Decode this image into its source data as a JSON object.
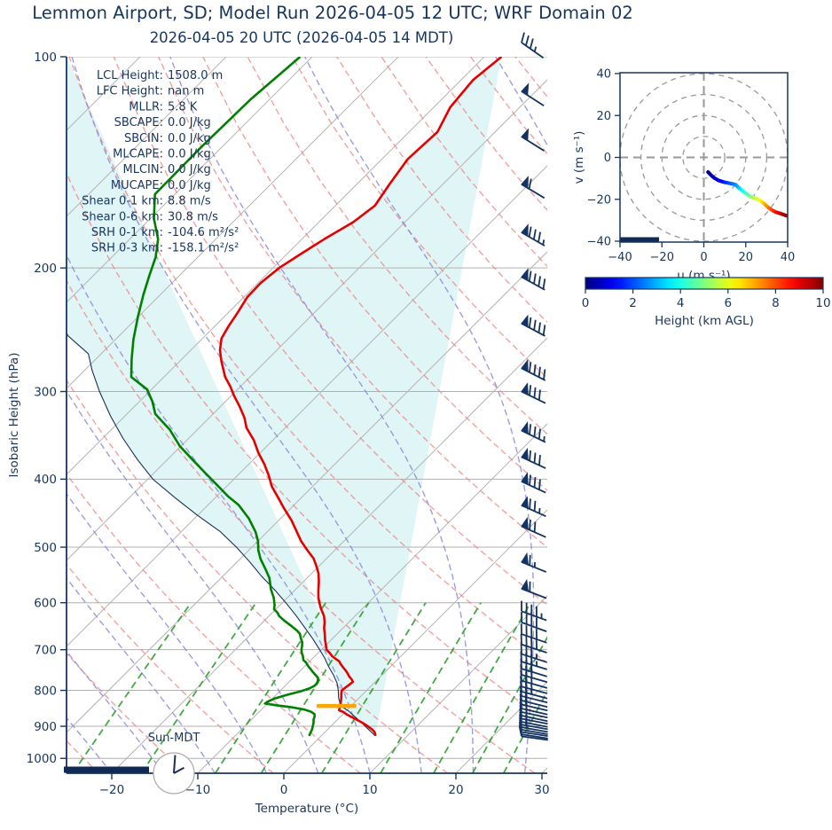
{
  "title": "Lemmon Airport, SD; Model Run 2026-04-05 12 UTC; WRF Domain 02",
  "subtitle": "2026-04-05 20 UTC  (2026-04-05 14 MDT)",
  "colors": {
    "text": "#17365d",
    "spine": "#17365d",
    "temperature_line": "#e50000",
    "dewpoint_line": "#008000",
    "parcel_line": "#1b2f55",
    "dry_adiabat": "#f08080",
    "moist_adiabat": "#8585da",
    "mixing_ratio": "#2d9e2d",
    "isotherm": "#b5b5b5",
    "grid": "#b0b0b0",
    "shade_cin": "#e0f5f6",
    "wind_barb": "#153360",
    "lcl_marker": "#ffa500",
    "night_bar": "#102a54",
    "hodo_ring": "#999999",
    "clock_face": "#aaaaaa"
  },
  "chart_data": {
    "type": "skew-t-log-p sounding",
    "skewt": {
      "xlabel": "Temperature (°C)",
      "ylabel": "Isobaric Height (hPa)",
      "x_ticks": [
        -20,
        -10,
        0,
        10,
        20,
        30
      ],
      "p_ticks": [
        100,
        200,
        300,
        400,
        500,
        600,
        700,
        800,
        900,
        1000
      ],
      "xlim_bottom": [
        -25.3,
        30.6
      ],
      "plim": [
        100,
        1050
      ],
      "sun_label": "Sun-MDT",
      "clock_shows": "14:00",
      "temperature_profile": [
        [
          100,
          -58.0
        ],
        [
          108,
          -58.6
        ],
        [
          118,
          -58.1
        ],
        [
          128,
          -56.7
        ],
        [
          140,
          -57.0
        ],
        [
          152,
          -56.2
        ],
        [
          163,
          -55.4
        ],
        [
          172,
          -56.0
        ],
        [
          182,
          -57.4
        ],
        [
          190,
          -58.3
        ],
        [
          200,
          -59.3
        ],
        [
          210,
          -59.7
        ],
        [
          220,
          -59.6
        ],
        [
          232,
          -58.9
        ],
        [
          242,
          -58.4
        ],
        [
          252,
          -57.8
        ],
        [
          262,
          -56.6
        ],
        [
          272,
          -55.1
        ],
        [
          286,
          -52.9
        ],
        [
          295,
          -51.2
        ],
        [
          304,
          -49.7
        ],
        [
          315,
          -47.8
        ],
        [
          327,
          -45.9
        ],
        [
          338,
          -44.5
        ],
        [
          352,
          -42.2
        ],
        [
          367,
          -40.2
        ],
        [
          380,
          -38.3
        ],
        [
          395,
          -36.4
        ],
        [
          410,
          -34.7
        ],
        [
          425,
          -32.7
        ],
        [
          440,
          -30.8
        ],
        [
          458,
          -28.5
        ],
        [
          476,
          -26.5
        ],
        [
          490,
          -25.0
        ],
        [
          505,
          -23.2
        ],
        [
          519,
          -21.5
        ],
        [
          532,
          -20.3
        ],
        [
          545,
          -19.2
        ],
        [
          560,
          -18.2
        ],
        [
          577,
          -17.2
        ],
        [
          590,
          -16.4
        ],
        [
          600,
          -15.7
        ],
        [
          612,
          -14.8
        ],
        [
          627,
          -13.6
        ],
        [
          640,
          -12.8
        ],
        [
          652,
          -12.2
        ],
        [
          662,
          -11.6
        ],
        [
          669,
          -11.2
        ],
        [
          678,
          -10.7
        ],
        [
          688,
          -10.1
        ],
        [
          700,
          -9.4
        ],
        [
          708,
          -8.6
        ],
        [
          715,
          -8.0
        ],
        [
          722,
          -7.2
        ],
        [
          727,
          -6.6
        ],
        [
          735,
          -6.0
        ],
        [
          742,
          -5.4
        ],
        [
          750,
          -4.7
        ],
        [
          758,
          -4.1
        ],
        [
          765,
          -3.6
        ],
        [
          772,
          -3.0
        ],
        [
          778,
          -2.6
        ],
        [
          785,
          -2.7
        ],
        [
          793,
          -2.8
        ],
        [
          800,
          -2.9
        ],
        [
          808,
          -2.6
        ],
        [
          815,
          -2.3
        ],
        [
          822,
          -2.0
        ],
        [
          830,
          -1.7
        ],
        [
          836,
          -1.5
        ],
        [
          842,
          -1.3
        ],
        [
          848,
          -1.1
        ],
        [
          854,
          -0.9
        ],
        [
          858,
          -0.3
        ],
        [
          864,
          0.3
        ],
        [
          872,
          1.2
        ],
        [
          881,
          2.3
        ],
        [
          890,
          3.3
        ],
        [
          900,
          4.3
        ],
        [
          911,
          5.3
        ],
        [
          918,
          5.8
        ],
        [
          924,
          6.1
        ],
        [
          929,
          6.3
        ]
      ],
      "dewpoint_profile": [
        [
          100,
          -81.4
        ],
        [
          115,
          -82.2
        ],
        [
          135,
          -82.4
        ],
        [
          157,
          -82.3
        ],
        [
          170,
          -79.6
        ],
        [
          182,
          -76.7
        ],
        [
          193,
          -74.9
        ],
        [
          205,
          -73.5
        ],
        [
          218,
          -72.0
        ],
        [
          235,
          -70.0
        ],
        [
          253,
          -67.9
        ],
        [
          270,
          -65.8
        ],
        [
          286,
          -63.8
        ],
        [
          298,
          -60.5
        ],
        [
          310,
          -58.5
        ],
        [
          323,
          -56.7
        ],
        [
          340,
          -53.2
        ],
        [
          359,
          -50.1
        ],
        [
          375,
          -47.1
        ],
        [
          391,
          -44.2
        ],
        [
          407,
          -41.4
        ],
        [
          423,
          -38.7
        ],
        [
          435,
          -36.5
        ],
        [
          455,
          -33.7
        ],
        [
          476,
          -31.3
        ],
        [
          490,
          -30.0
        ],
        [
          505,
          -28.9
        ],
        [
          520,
          -27.6
        ],
        [
          536,
          -26.0
        ],
        [
          553,
          -24.4
        ],
        [
          574,
          -22.9
        ],
        [
          590,
          -21.6
        ],
        [
          605,
          -20.6
        ],
        [
          613,
          -20.2
        ],
        [
          620,
          -19.4
        ],
        [
          627,
          -18.8
        ],
        [
          637,
          -17.6
        ],
        [
          648,
          -16.2
        ],
        [
          658,
          -15.0
        ],
        [
          665,
          -14.3
        ],
        [
          673,
          -13.8
        ],
        [
          683,
          -13.1
        ],
        [
          691,
          -12.7
        ],
        [
          698,
          -12.4
        ],
        [
          706,
          -12.0
        ],
        [
          715,
          -11.4
        ],
        [
          724,
          -10.9
        ],
        [
          730,
          -10.3
        ],
        [
          738,
          -9.7
        ],
        [
          746,
          -9.0
        ],
        [
          752,
          -8.5
        ],
        [
          760,
          -7.8
        ],
        [
          768,
          -7.1
        ],
        [
          775,
          -6.8
        ],
        [
          782,
          -6.6
        ],
        [
          788,
          -6.6
        ],
        [
          795,
          -6.9
        ],
        [
          803,
          -7.6
        ],
        [
          812,
          -8.8
        ],
        [
          822,
          -9.8
        ],
        [
          830,
          -10.2
        ],
        [
          835,
          -10.3
        ],
        [
          840,
          -8.8
        ],
        [
          845,
          -6.9
        ],
        [
          852,
          -5.0
        ],
        [
          858,
          -4.0
        ],
        [
          865,
          -3.3
        ],
        [
          872,
          -3.0
        ],
        [
          880,
          -2.8
        ],
        [
          890,
          -2.4
        ],
        [
          900,
          -2.1
        ],
        [
          910,
          -1.8
        ],
        [
          920,
          -1.6
        ],
        [
          929,
          -1.4
        ]
      ],
      "parcel_profile": [
        [
          929,
          6.3
        ],
        [
          910,
          4.8
        ],
        [
          890,
          3.2
        ],
        [
          870,
          1.5
        ],
        [
          855,
          0.2
        ],
        [
          842,
          -1.2
        ],
        [
          820,
          -2.4
        ],
        [
          800,
          -3.3
        ],
        [
          781,
          -4.3
        ],
        [
          760,
          -5.7
        ],
        [
          740,
          -7.2
        ],
        [
          720,
          -8.6
        ],
        [
          700,
          -10.2
        ],
        [
          675,
          -12.3
        ],
        [
          650,
          -14.6
        ],
        [
          625,
          -17.0
        ],
        [
          600,
          -19.6
        ],
        [
          575,
          -22.4
        ],
        [
          550,
          -25.5
        ],
        [
          525,
          -28.5
        ],
        [
          500,
          -31.8
        ],
        [
          475,
          -35.5
        ],
        [
          450,
          -40.1
        ],
        [
          425,
          -44.7
        ],
        [
          400,
          -49.4
        ],
        [
          375,
          -53.5
        ],
        [
          350,
          -57.6
        ],
        [
          325,
          -61.7
        ],
        [
          300,
          -65.8
        ],
        [
          280,
          -69.1
        ],
        [
          265,
          -71.5
        ],
        [
          250,
          -75.9
        ],
        [
          230,
          -80.5
        ],
        [
          200,
          -86.0
        ],
        [
          150,
          -97.0
        ],
        [
          100,
          -110.0
        ]
      ],
      "lcl_marker": {
        "pressure": 842,
        "t_center": -1.7,
        "half_width_c": 2.3
      },
      "wind_barbs": [
        {
          "y": 48,
          "kt": 35,
          "dir": 305
        },
        {
          "p": 112,
          "kt": 50,
          "dir": 303
        },
        {
          "p": 130,
          "kt": 50,
          "dir": 302
        },
        {
          "p": 152,
          "kt": 60,
          "dir": 301
        },
        {
          "p": 178,
          "kt": 85,
          "dir": 300
        },
        {
          "p": 206,
          "kt": 90,
          "dir": 299
        },
        {
          "p": 240,
          "kt": 90,
          "dir": 298
        },
        {
          "p": 278,
          "kt": 90,
          "dir": 297
        },
        {
          "p": 300,
          "kt": 80,
          "dir": 296
        },
        {
          "p": 341,
          "kt": 85,
          "dir": 296
        },
        {
          "p": 372,
          "kt": 80,
          "dir": 295
        },
        {
          "p": 403,
          "kt": 80,
          "dir": 295
        },
        {
          "p": 436,
          "kt": 75,
          "dir": 294
        },
        {
          "p": 467,
          "kt": 70,
          "dir": 294
        },
        {
          "p": 525,
          "kt": 65,
          "dir": 292
        },
        {
          "p": 573,
          "kt": 60,
          "dir": 291
        },
        {
          "p": 617,
          "kt": 45,
          "dir": 290
        },
        {
          "p": 640,
          "kt": 42,
          "dir": 290
        },
        {
          "p": 665,
          "kt": 40,
          "dir": 289
        },
        {
          "p": 688,
          "kt": 40,
          "dir": 288
        },
        {
          "p": 710,
          "kt": 38,
          "dir": 288
        },
        {
          "p": 728,
          "kt": 35,
          "dir": 287
        },
        {
          "p": 745,
          "kt": 32,
          "dir": 287
        },
        {
          "p": 760,
          "kt": 30,
          "dir": 286
        },
        {
          "p": 775,
          "kt": 28,
          "dir": 286
        },
        {
          "p": 790,
          "kt": 27,
          "dir": 285
        },
        {
          "p": 803,
          "kt": 25,
          "dir": 285
        },
        {
          "p": 815,
          "kt": 24,
          "dir": 284
        },
        {
          "p": 827,
          "kt": 22,
          "dir": 284
        },
        {
          "p": 838,
          "kt": 21,
          "dir": 283
        },
        {
          "p": 849,
          "kt": 20,
          "dir": 283
        },
        {
          "p": 859,
          "kt": 19,
          "dir": 282
        },
        {
          "p": 869,
          "kt": 18,
          "dir": 282
        },
        {
          "p": 878,
          "kt": 17,
          "dir": 281
        },
        {
          "p": 887,
          "kt": 16,
          "dir": 281
        },
        {
          "p": 895,
          "kt": 15,
          "dir": 280
        },
        {
          "p": 903,
          "kt": 15,
          "dir": 280
        },
        {
          "p": 910,
          "kt": 14,
          "dir": 280
        },
        {
          "p": 917,
          "kt": 13,
          "dir": 279
        },
        {
          "p": 924,
          "kt": 13,
          "dir": 279
        },
        {
          "p": 930,
          "kt": 12,
          "dir": 278
        }
      ]
    },
    "annotations": [
      {
        "label": "LCL Height",
        "value": "1508.0 m"
      },
      {
        "label": "LFC Height",
        "value": "nan m"
      },
      {
        "label": "MLLR",
        "value": "5.8 K"
      },
      {
        "label": "SBCAPE",
        "value": "0.0 J/kg"
      },
      {
        "label": "SBCIN",
        "value": "0.0 J/kg"
      },
      {
        "label": "MLCAPE",
        "value": "0.0 J/kg"
      },
      {
        "label": "MLCIN",
        "value": "0.0 J/kg"
      },
      {
        "label": "MUCAPE",
        "value": "0.0 J/kg"
      },
      {
        "label": "Shear 0-1 km",
        "value": "8.8 m/s"
      },
      {
        "label": "Shear 0-6 km",
        "value": "30.8 m/s"
      },
      {
        "label": "SRH 0-1 km",
        "value": "-104.6 m²/s²"
      },
      {
        "label": "SRH 0-3 km",
        "value": "-158.1 m²/s²"
      }
    ],
    "hodograph": {
      "xlabel": "u (m s⁻¹)",
      "ylabel": "v (m s⁻¹)",
      "ticks": [
        -40,
        -20,
        0,
        20,
        40
      ],
      "lim": [
        -40,
        40
      ],
      "rings": [
        10,
        20,
        30,
        40
      ],
      "trace_uvh": [
        [
          2,
          -7,
          0
        ],
        [
          2.5,
          -7.5,
          0.15
        ],
        [
          3,
          -8,
          0.3
        ],
        [
          4,
          -9,
          0.5
        ],
        [
          5,
          -9.8,
          0.7
        ],
        [
          6,
          -10.4,
          0.85
        ],
        [
          7,
          -11,
          1.0
        ],
        [
          8,
          -11.3,
          1.2
        ],
        [
          9,
          -11.6,
          1.4
        ],
        [
          10,
          -11.9,
          1.6
        ],
        [
          11,
          -12.1,
          1.8
        ],
        [
          12,
          -12.3,
          2.0
        ],
        [
          13,
          -12.5,
          2.2
        ],
        [
          14,
          -12.7,
          2.4
        ],
        [
          15,
          -13,
          2.6
        ],
        [
          15.8,
          -13.6,
          2.8
        ],
        [
          16.3,
          -14.2,
          3.0
        ],
        [
          17,
          -14.8,
          3.3
        ],
        [
          17.8,
          -15.4,
          3.6
        ],
        [
          18.6,
          -16.1,
          3.9
        ],
        [
          19.5,
          -16.8,
          4.2
        ],
        [
          20.5,
          -17.5,
          4.5
        ],
        [
          21.5,
          -18.2,
          4.8
        ],
        [
          22.5,
          -18.8,
          5.1
        ],
        [
          23.5,
          -19.2,
          5.4
        ],
        [
          24.7,
          -19.6,
          5.7
        ],
        [
          25.8,
          -20.0,
          6.0
        ],
        [
          26.9,
          -20.6,
          6.3
        ],
        [
          27.8,
          -21.3,
          6.6
        ],
        [
          28.7,
          -22.0,
          6.9
        ],
        [
          29.5,
          -22.8,
          7.2
        ],
        [
          30.4,
          -23.6,
          7.5
        ],
        [
          31.3,
          -24.3,
          7.8
        ],
        [
          32.3,
          -25.0,
          8.1
        ],
        [
          33.3,
          -25.6,
          8.4
        ],
        [
          34.4,
          -26.1,
          8.7
        ],
        [
          35.5,
          -26.5,
          9.0
        ],
        [
          36.6,
          -26.8,
          9.3
        ],
        [
          37.7,
          -27.2,
          9.6
        ],
        [
          38.8,
          -27.6,
          9.8
        ],
        [
          40,
          -28,
          10
        ]
      ]
    },
    "colorbar": {
      "label": "Height (km AGL)",
      "ticks": [
        0,
        2,
        4,
        6,
        8,
        10
      ],
      "range": [
        0,
        10
      ],
      "colormap": "jet"
    }
  }
}
